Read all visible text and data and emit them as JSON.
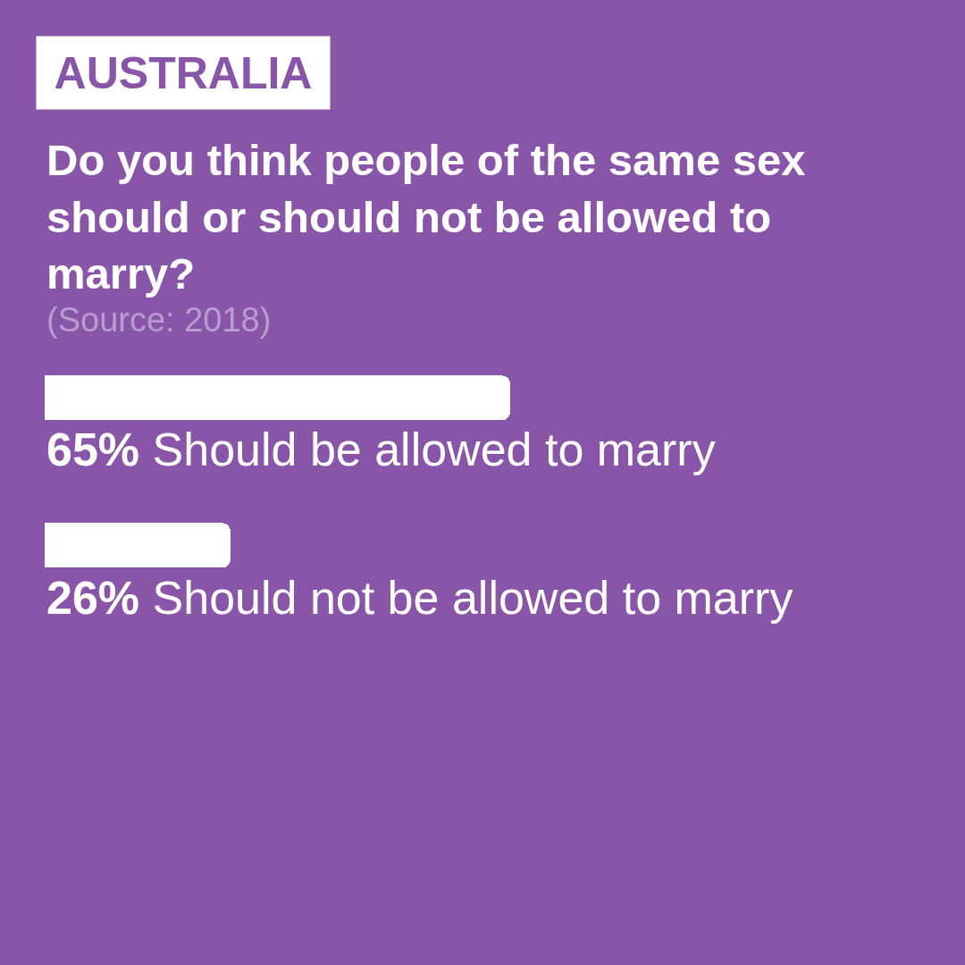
{
  "chart_data": {
    "type": "bar",
    "orientation": "horizontal",
    "title": "AUSTRALIA",
    "subtitle": "Do you think people of the same sex should or should not be allowed to marry?",
    "annotations": [
      "(Source: 2018)"
    ],
    "categories": [
      "Should be allowed to marry",
      "Should not be allowed to marry"
    ],
    "values": [
      65,
      26
    ],
    "value_labels": [
      "65%",
      "26%"
    ],
    "color": "#ffffff",
    "tick_labels": false
  }
}
